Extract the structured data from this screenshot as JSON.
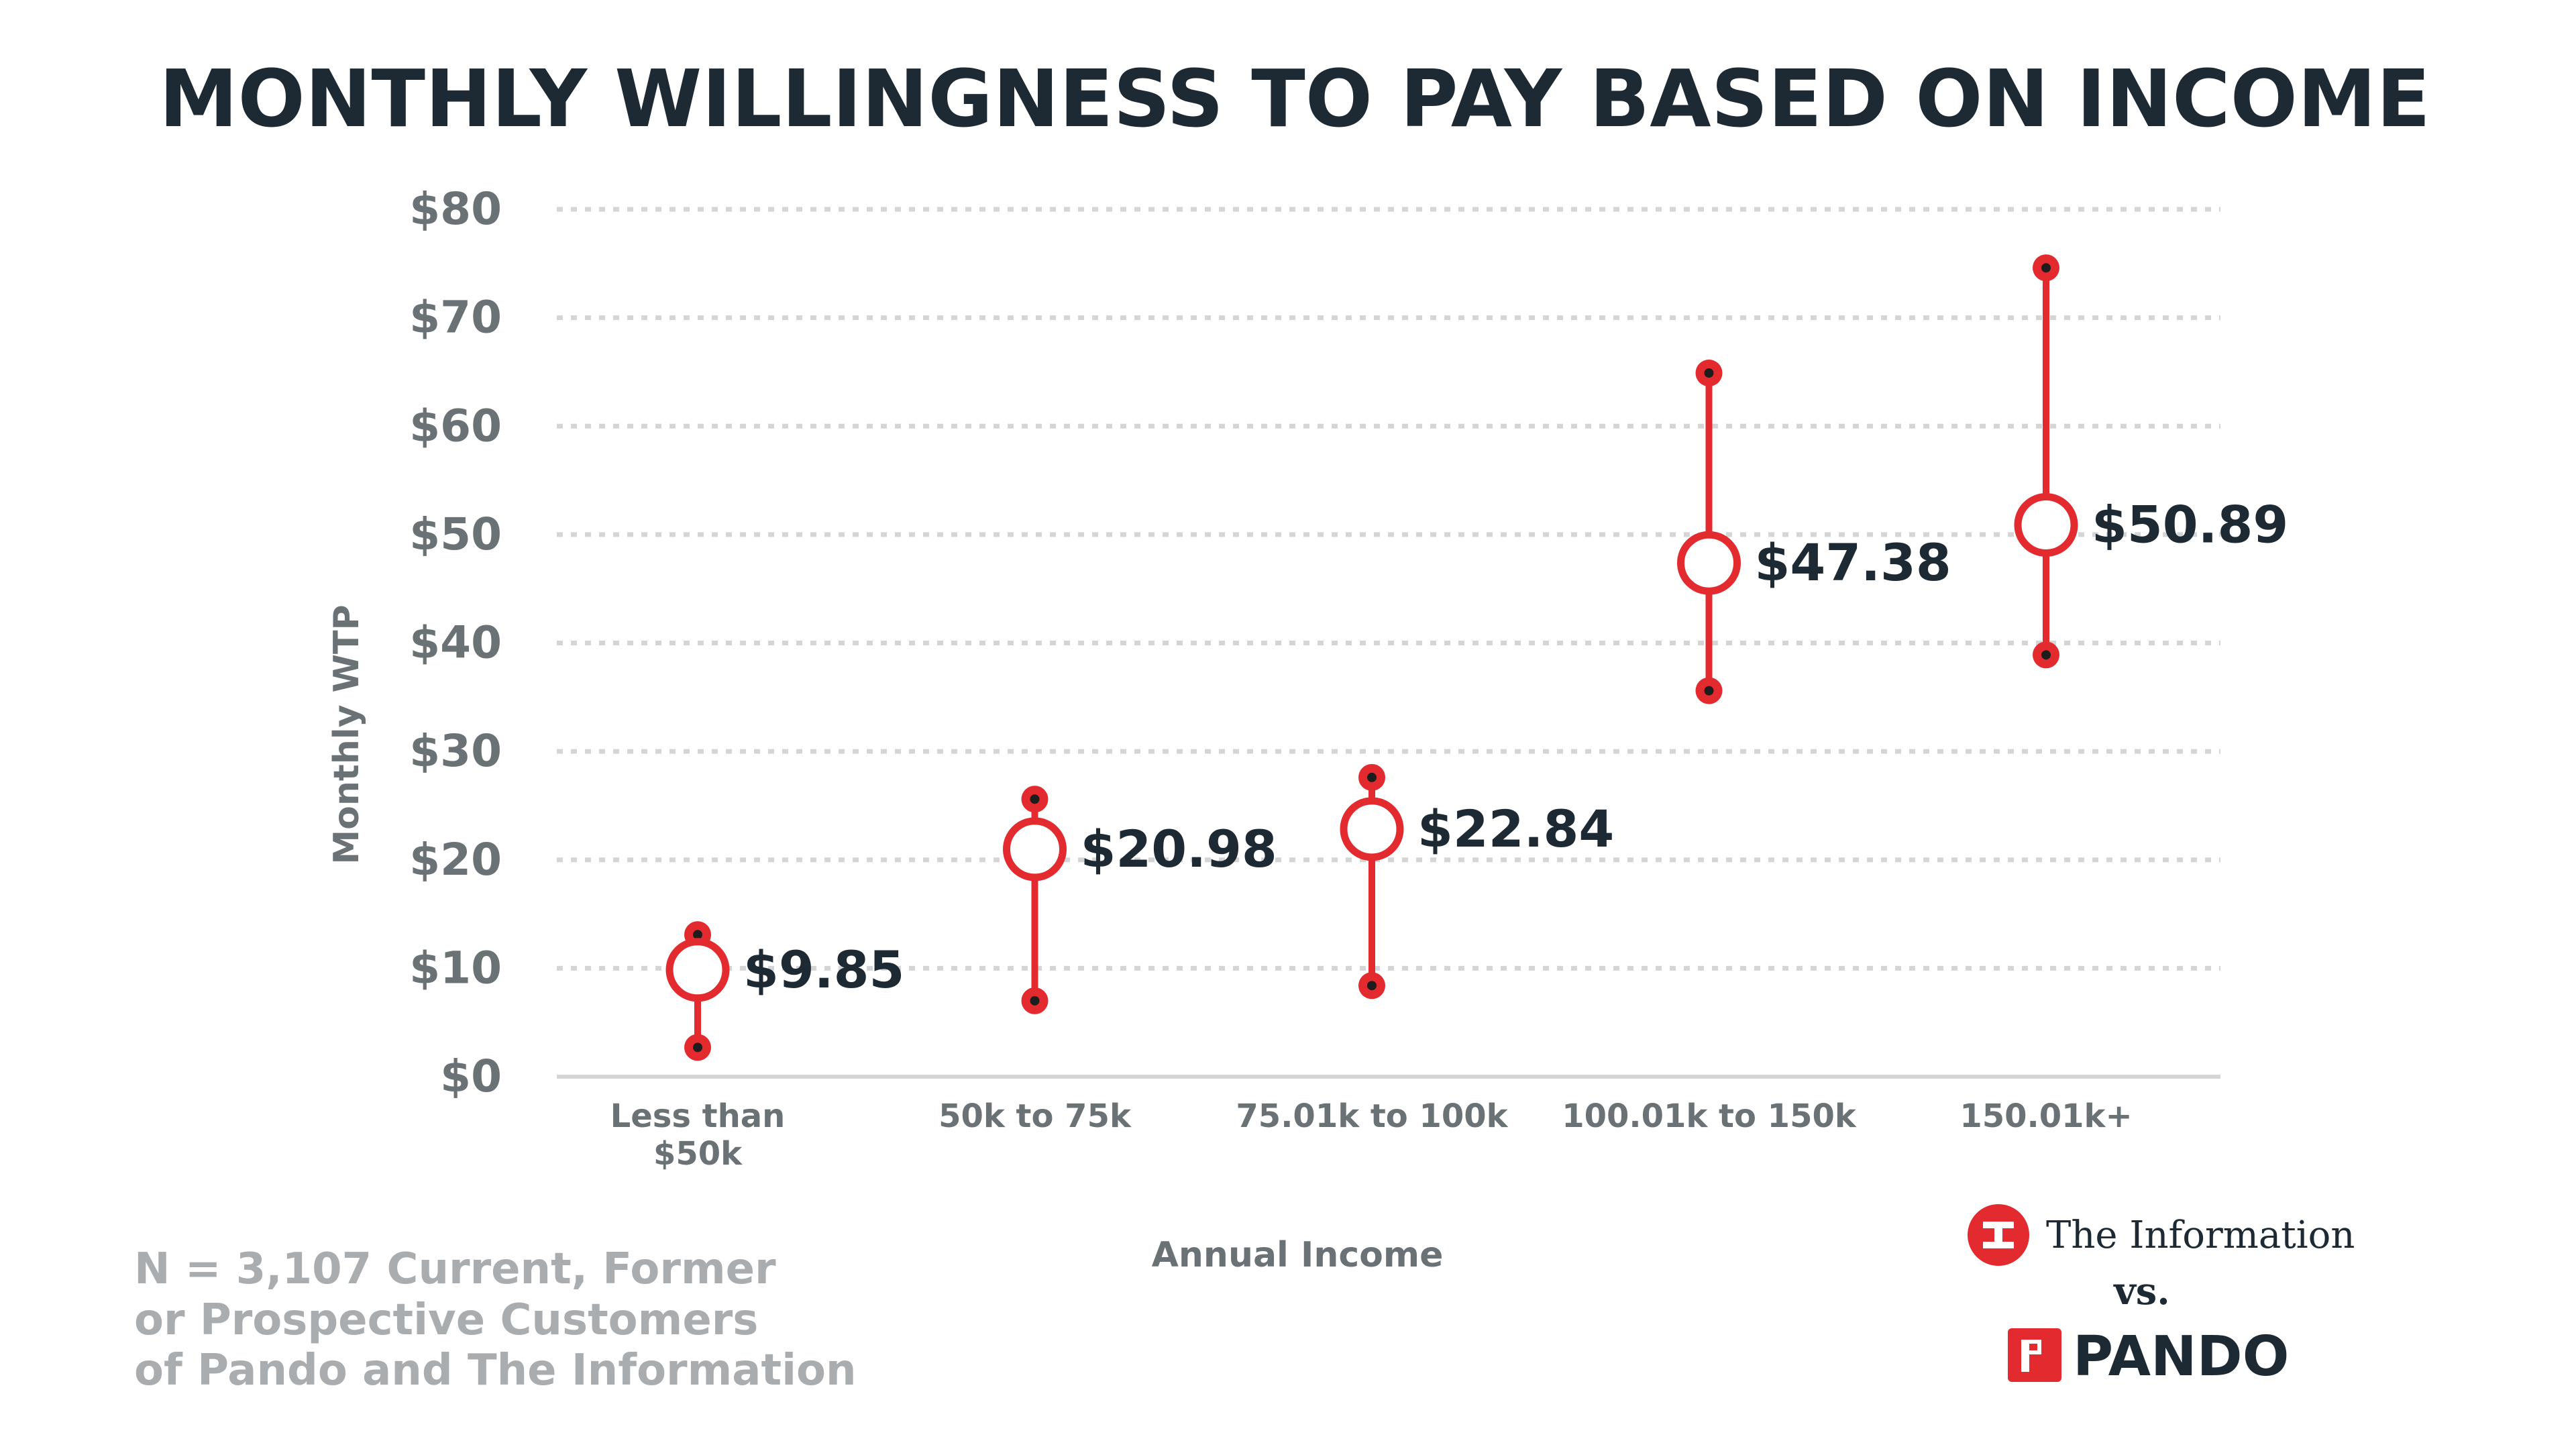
{
  "chart_data": {
    "type": "scatter",
    "title": "MONTHLY WILLINGNESS TO PAY BASED ON INCOME",
    "xlabel": "Annual Income",
    "ylabel": "Monthly WTP",
    "ylim": [
      0,
      80
    ],
    "yticks": [
      "$0",
      "$10",
      "$20",
      "$30",
      "$40",
      "$50",
      "$60",
      "$70",
      "$80"
    ],
    "ytick_values": [
      0,
      10,
      20,
      30,
      40,
      50,
      60,
      70,
      80
    ],
    "grid": true,
    "categories": [
      [
        "Less than",
        "$50k"
      ],
      [
        "50k to 75k"
      ],
      [
        "75.01k to 100k"
      ],
      [
        "100.01k to 150k"
      ],
      [
        "150.01k+"
      ]
    ],
    "series": [
      {
        "values": [
          9.85,
          20.98,
          22.84,
          47.38,
          50.89
        ],
        "labels": [
          "$9.85",
          "$20.98",
          "$22.84",
          "$47.38",
          "$50.89"
        ],
        "low": [
          2.7,
          7.0,
          8.4,
          35.6,
          38.9
        ],
        "high": [
          13.1,
          25.6,
          27.6,
          64.9,
          74.6
        ]
      }
    ],
    "colors": {
      "accent": "#e32a2f",
      "dot": "#1d1d1d",
      "grid": "#d3d5d6",
      "axis": "#d3d5d6"
    }
  },
  "footnote": {
    "line1": "N = 3,107 Current, Former",
    "line2": "or Prospective Customers",
    "line3": "of Pando and The Information"
  },
  "branding": {
    "the_information": "The Information",
    "the_information_logo_icon": "information-logo-icon",
    "vs": "vs.",
    "pando": "PANDO",
    "pando_logo_icon": "pando-logo-icon",
    "the_information_color": "#e32a2f",
    "pando_color": "#e32a2f"
  }
}
